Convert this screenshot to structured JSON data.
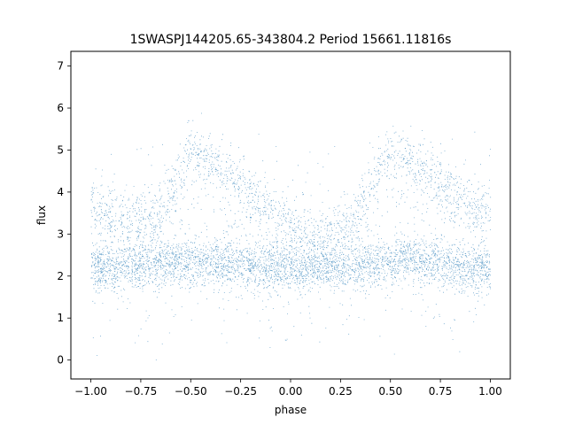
{
  "chart_data": {
    "type": "scatter",
    "title": "1SWASPJ144205.65-343804.2 Period 15661.11816s",
    "xlabel": "phase",
    "ylabel": "flux",
    "xlim": [
      -1.1,
      1.1
    ],
    "ylim": [
      -0.45,
      7.35
    ],
    "xticks": [
      -1.0,
      -0.75,
      -0.5,
      -0.25,
      0.0,
      0.25,
      0.5,
      0.75,
      1.0
    ],
    "xtick_labels": [
      "−1.00",
      "−0.75",
      "−0.50",
      "−0.25",
      "0.00",
      "0.25",
      "0.50",
      "0.75",
      "1.00"
    ],
    "yticks": [
      0,
      1,
      2,
      3,
      4,
      5,
      6,
      7
    ],
    "ytick_labels": [
      "0",
      "1",
      "2",
      "3",
      "4",
      "5",
      "6",
      "7"
    ],
    "grid": false,
    "marker_color": "#1f77b4",
    "series_profile": {
      "phase": [
        -1.0,
        -0.9,
        -0.8,
        -0.7,
        -0.6,
        -0.5,
        -0.45,
        -0.4,
        -0.3,
        -0.2,
        -0.1,
        0.0,
        0.1,
        0.2,
        0.3,
        0.4,
        0.5,
        0.55,
        0.6,
        0.7,
        0.8,
        0.9,
        1.0
      ],
      "baseline_flux": [
        2.2,
        2.2,
        2.25,
        2.3,
        2.35,
        2.3,
        2.3,
        2.35,
        2.3,
        2.25,
        2.2,
        2.15,
        2.15,
        2.2,
        2.25,
        2.3,
        2.3,
        2.35,
        2.35,
        2.3,
        2.25,
        2.2,
        2.2
      ],
      "upper_branch_flux": [
        3.7,
        3.4,
        3.3,
        3.2,
        4.0,
        4.9,
        4.8,
        4.7,
        4.3,
        3.9,
        3.5,
        3.1,
        2.8,
        2.9,
        3.2,
        4.2,
        4.9,
        4.8,
        4.7,
        4.4,
        4.0,
        3.7,
        3.7
      ]
    }
  }
}
